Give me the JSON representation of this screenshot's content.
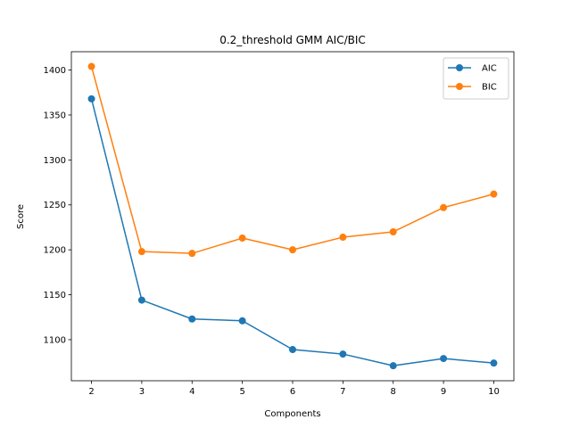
{
  "chart_data": {
    "type": "line",
    "title": "0.2_threshold GMM AIC/BIC",
    "xlabel": "Components",
    "ylabel": "Score",
    "x": [
      2,
      3,
      4,
      5,
      6,
      7,
      8,
      9,
      10
    ],
    "xticks": [
      "2",
      "3",
      "4",
      "5",
      "6",
      "7",
      "8",
      "9",
      "10"
    ],
    "yticks": [
      "1100",
      "1150",
      "1200",
      "1250",
      "1300",
      "1350",
      "1400"
    ],
    "xlim": [
      1.6,
      10.4
    ],
    "ylim": [
      1054.3,
      1420.4
    ],
    "grid": false,
    "legend_position": "top-right",
    "series": [
      {
        "name": "AIC",
        "color": "#1f77b4",
        "values": [
          1368,
          1144,
          1123,
          1121,
          1089,
          1084,
          1071,
          1079,
          1074
        ]
      },
      {
        "name": "BIC",
        "color": "#ff7f0e",
        "values": [
          1404,
          1198,
          1196,
          1213,
          1200,
          1214,
          1220,
          1247,
          1262
        ]
      }
    ]
  }
}
